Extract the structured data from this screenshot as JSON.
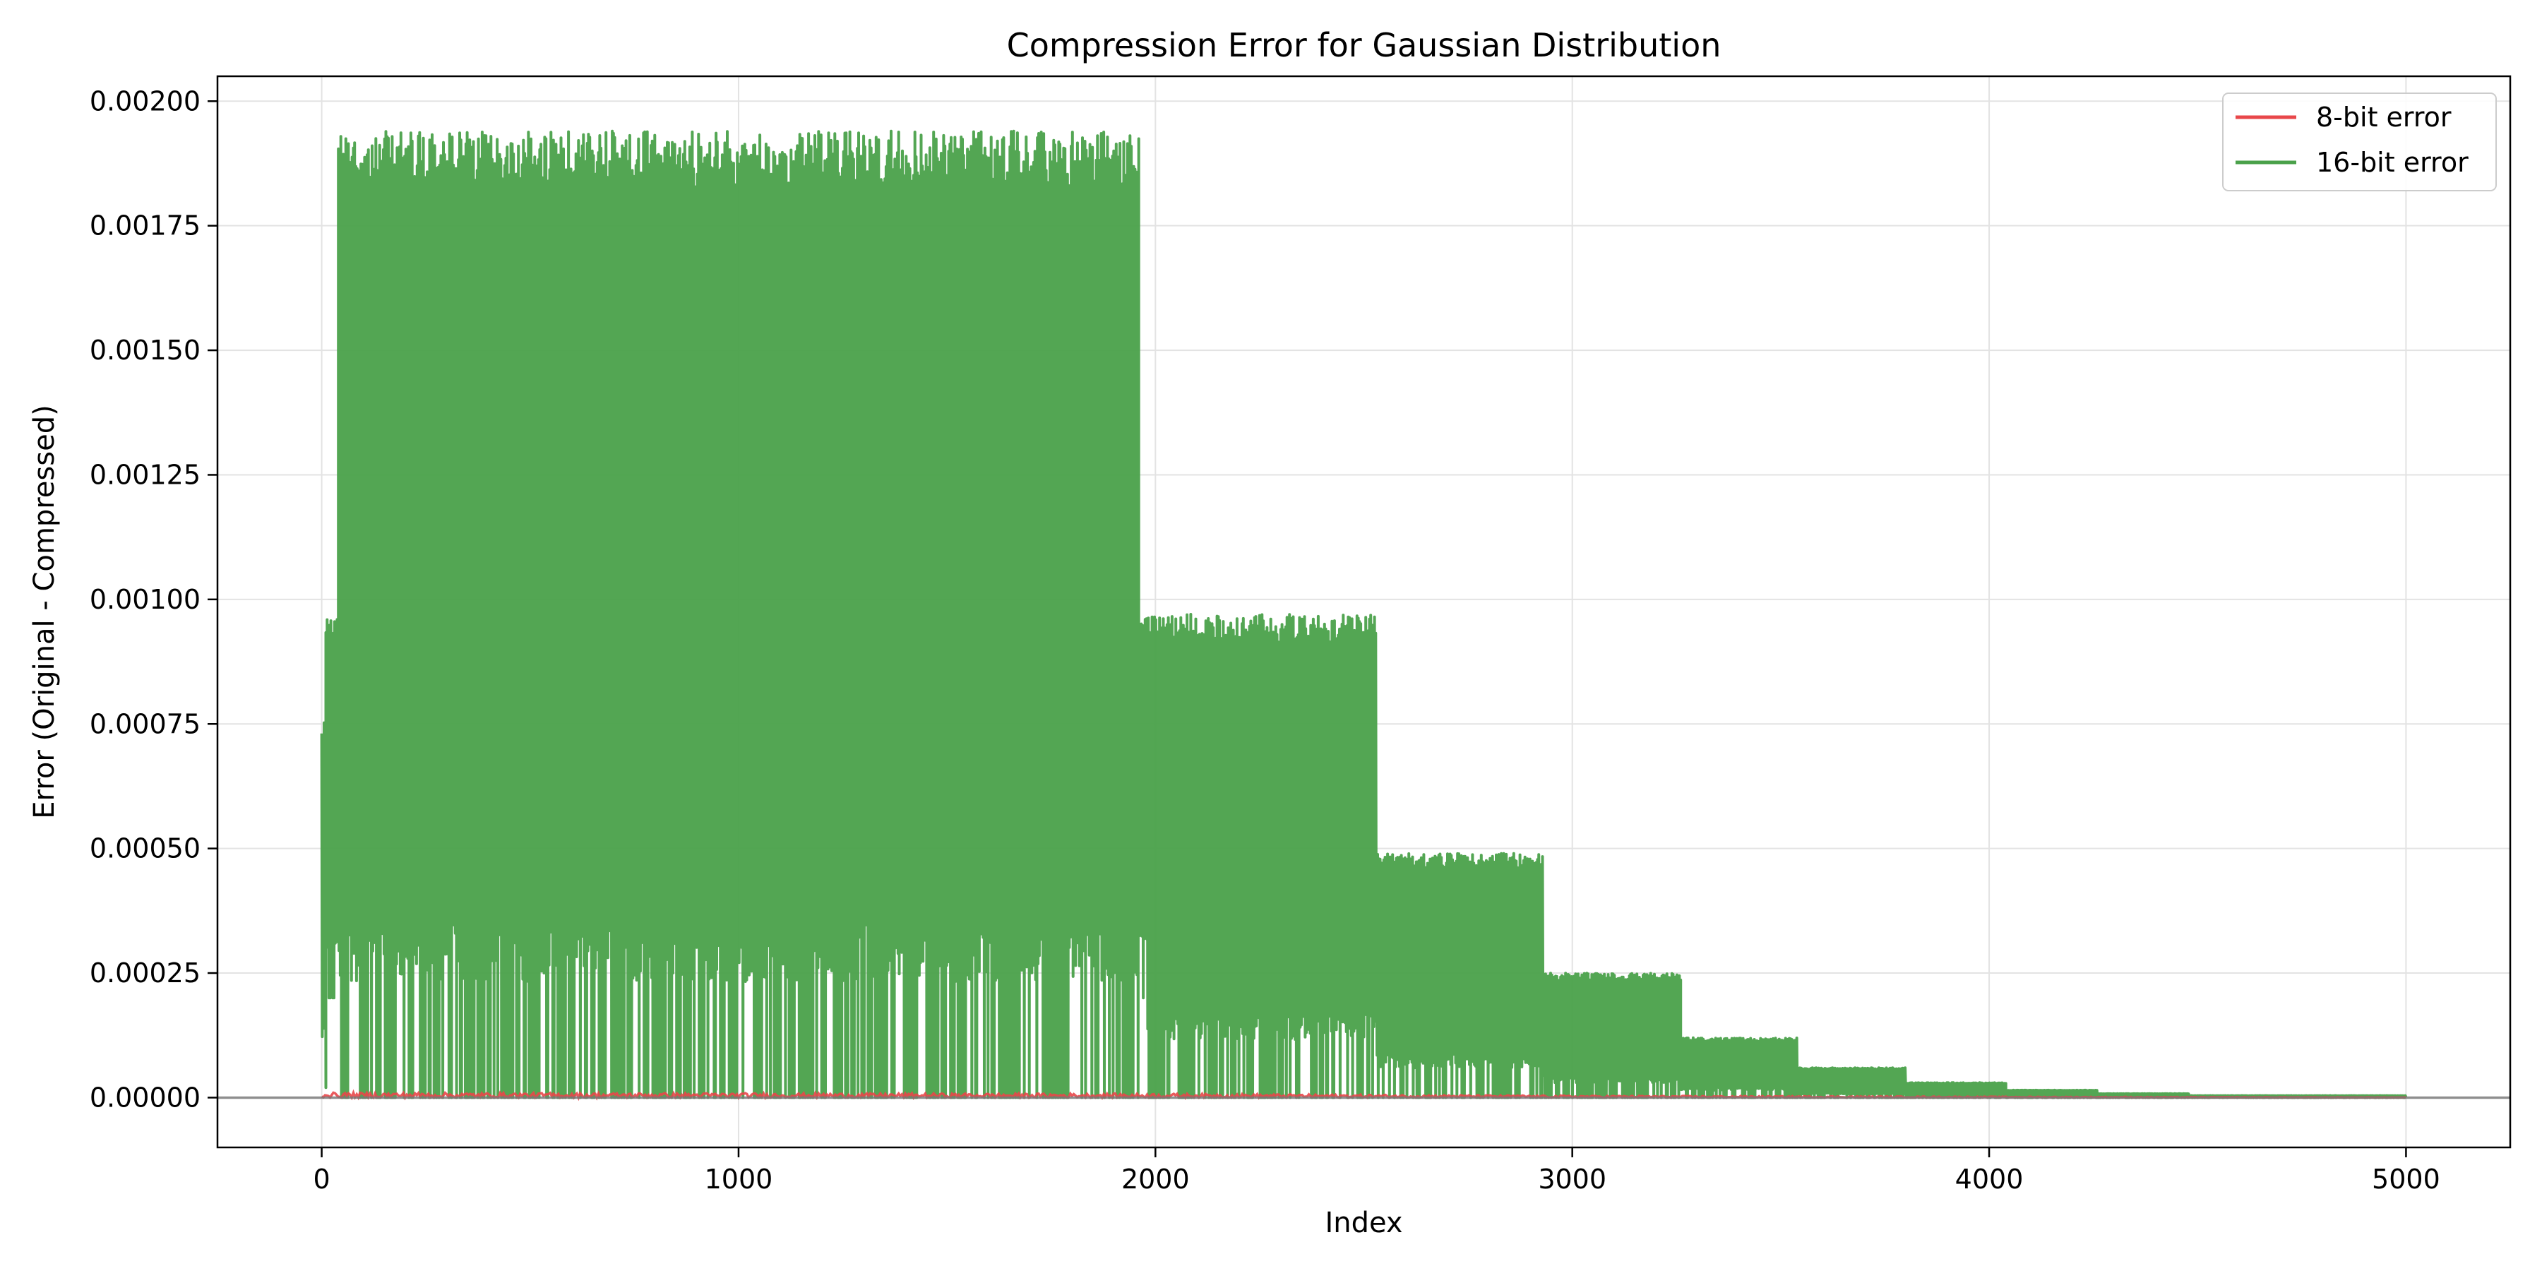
{
  "chart_data": {
    "type": "line",
    "title": "Compression Error for Gaussian Distribution",
    "xlabel": "Index",
    "ylabel": "Error (Original - Compressed)",
    "xlim": [
      -250,
      5250
    ],
    "ylim": [
      -0.0001,
      0.00205
    ],
    "xticks": [
      0,
      1000,
      2000,
      3000,
      4000,
      5000
    ],
    "xtick_labels": [
      "0",
      "1000",
      "2000",
      "3000",
      "4000",
      "5000"
    ],
    "yticks": [
      0,
      0.00025,
      0.0005,
      0.00075,
      0.001,
      0.00125,
      0.0015,
      0.00175,
      0.002
    ],
    "ytick_labels": [
      "0.00000",
      "0.00025",
      "0.00050",
      "0.00075",
      "0.00100",
      "0.00125",
      "0.00150",
      "0.00175",
      "0.00200"
    ],
    "grid": true,
    "legend_position": "top-right",
    "reference_line_y": 0,
    "series": [
      {
        "name": "8-bit error",
        "color": "#e8474a",
        "x_range": [
          0,
          5000
        ],
        "envelope": [
          {
            "x": 0,
            "y_min": 0,
            "y_max": 1e-05
          },
          {
            "x": 2000,
            "y_min": 0,
            "y_max": 8e-06
          },
          {
            "x": 3000,
            "y_min": 0,
            "y_max": 4e-06
          },
          {
            "x": 4000,
            "y_min": 0,
            "y_max": 2e-06
          },
          {
            "x": 5000,
            "y_min": 0,
            "y_max": 5e-07
          }
        ]
      },
      {
        "name": "16-bit error",
        "color": "#4aa14a",
        "x_range": [
          0,
          5000
        ],
        "segments": [
          {
            "x_start": 0,
            "x_end": 10,
            "y_min": 2e-05,
            "y_max": 0.00076
          },
          {
            "x_start": 10,
            "x_end": 40,
            "y_min": 0.0002,
            "y_max": 0.00097
          },
          {
            "x_start": 40,
            "x_end": 1960,
            "y_min": 0,
            "y_max": 0.00194
          },
          {
            "x_start": 1960,
            "x_end": 1980,
            "y_min": 0.0002,
            "y_max": 0.00097
          },
          {
            "x_start": 1980,
            "x_end": 2530,
            "y_min": 0,
            "y_max": 0.00097
          },
          {
            "x_start": 2530,
            "x_end": 2930,
            "y_min": 0,
            "y_max": 0.00049
          },
          {
            "x_start": 2930,
            "x_end": 3260,
            "y_min": 0,
            "y_max": 0.00025
          },
          {
            "x_start": 3260,
            "x_end": 3540,
            "y_min": 0,
            "y_max": 0.00012
          },
          {
            "x_start": 3540,
            "x_end": 3800,
            "y_min": 0,
            "y_max": 6e-05
          },
          {
            "x_start": 3800,
            "x_end": 4040,
            "y_min": 0,
            "y_max": 3e-05
          },
          {
            "x_start": 4040,
            "x_end": 4260,
            "y_min": 0,
            "y_max": 1.5e-05
          },
          {
            "x_start": 4260,
            "x_end": 4480,
            "y_min": 0,
            "y_max": 8e-06
          },
          {
            "x_start": 4480,
            "x_end": 5000,
            "y_min": 0,
            "y_max": 4e-06
          }
        ]
      }
    ]
  }
}
